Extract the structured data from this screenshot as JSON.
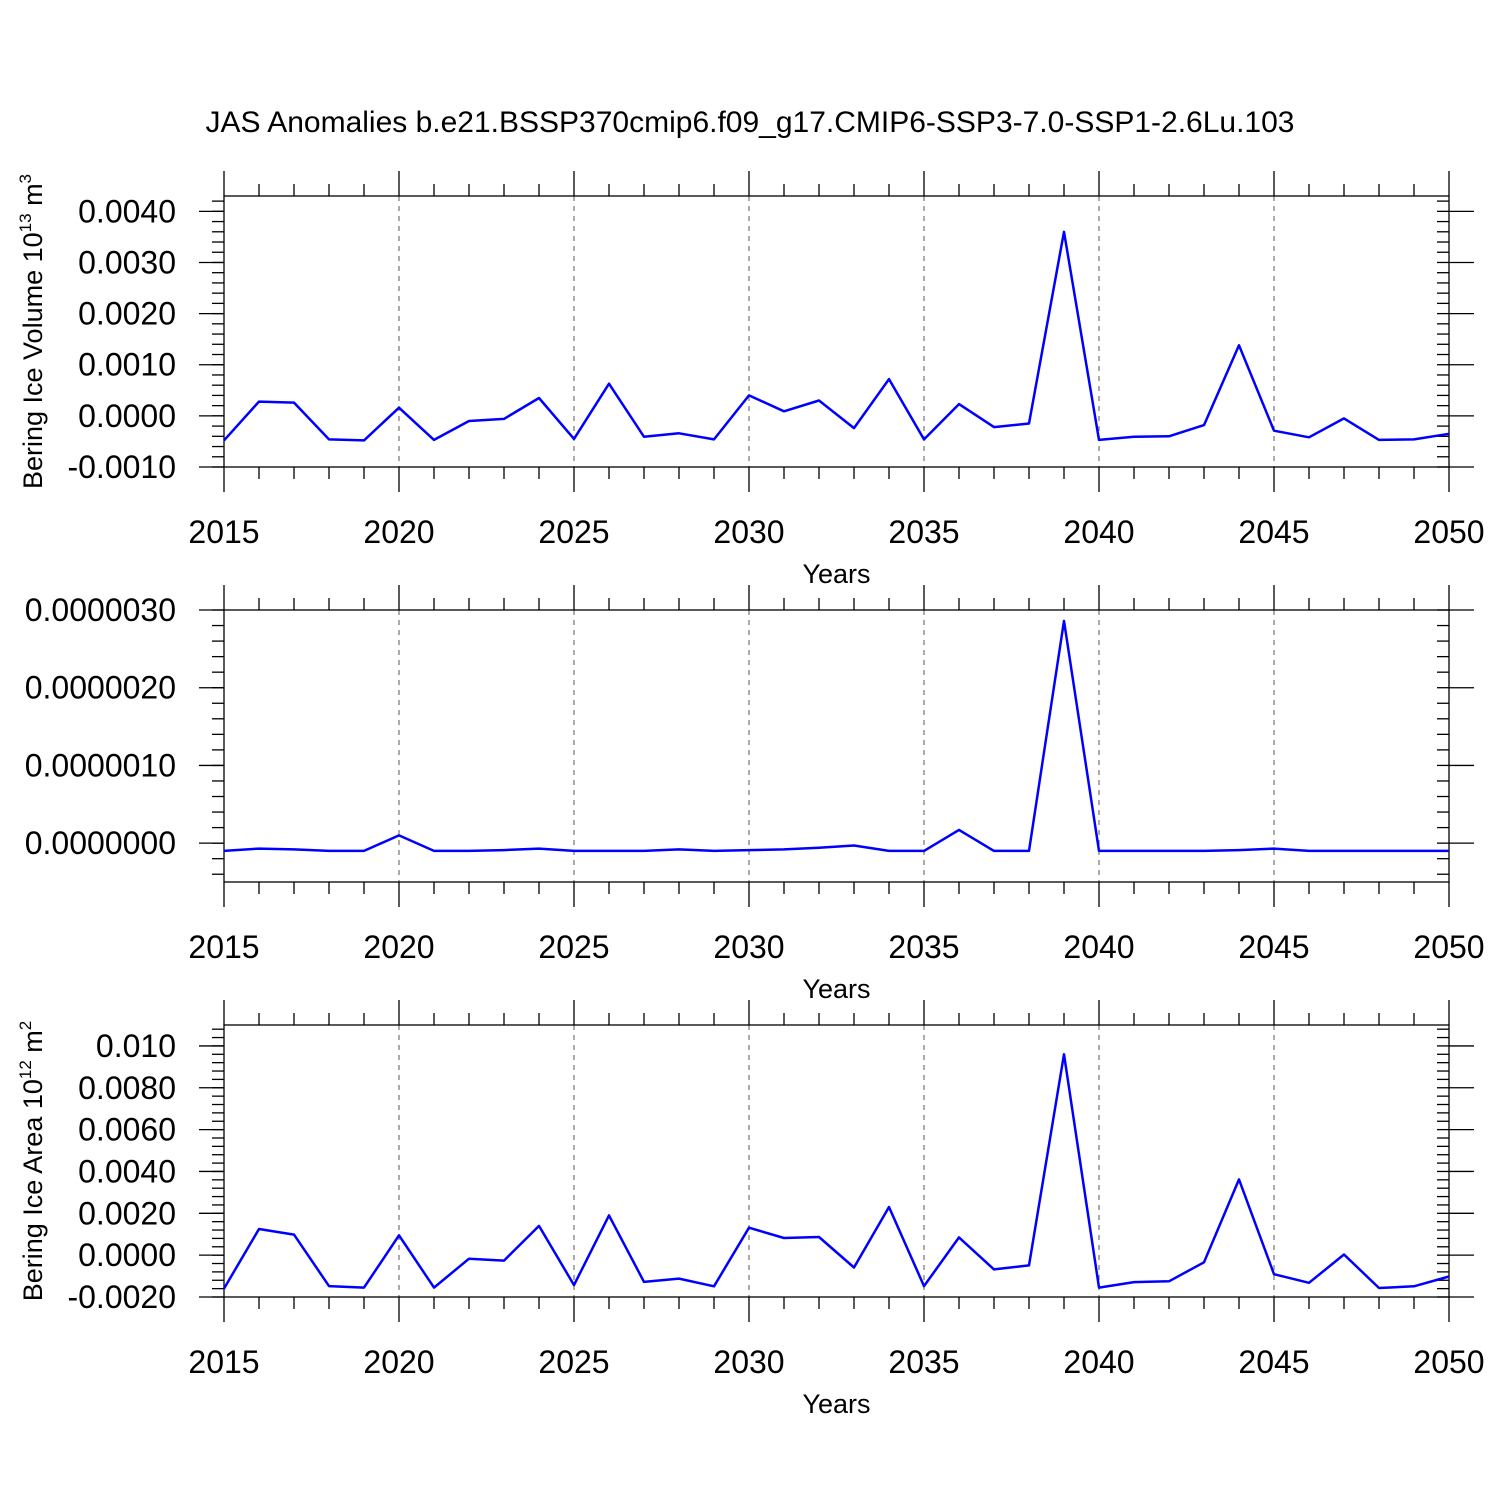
{
  "title": "JAS Anomalies b.e21.BSSP370cmip6.f09_g17.CMIP6-SSP3-7.0-SSP1-2.6Lu.103",
  "colors": {
    "line": "#0000ff",
    "grid": "#808080",
    "axis": "#000000"
  },
  "chart_data": [
    {
      "type": "line",
      "title": "",
      "xlabel": "Years",
      "ylabel": "Bering Ice Volume 10",
      "ylabel_exp": "13",
      "ylabel_unit": " m",
      "ylabel_unit_exp": "3",
      "xlim": [
        2015,
        2050
      ],
      "ylim": [
        -0.001,
        0.0043
      ],
      "xticks": [
        2015,
        2020,
        2025,
        2030,
        2035,
        2040,
        2045,
        2050
      ],
      "xtick_labels": [
        "2015",
        "2020",
        "2025",
        "2030",
        "2035",
        "2040",
        "2045",
        "2050"
      ],
      "yticks": [
        -0.001,
        0.0,
        0.001,
        0.002,
        0.003,
        0.004
      ],
      "ytick_labels": [
        "-0.0010",
        "0.0000",
        "0.0010",
        "0.0020",
        "0.0030",
        "0.0040"
      ],
      "grid": "vertical dashed at major x ticks",
      "x": [
        2015,
        2016,
        2017,
        2018,
        2019,
        2020,
        2021,
        2022,
        2023,
        2024,
        2025,
        2026,
        2027,
        2028,
        2029,
        2030,
        2031,
        2032,
        2033,
        2034,
        2035,
        2036,
        2037,
        2038,
        2039,
        2040,
        2041,
        2042,
        2043,
        2044,
        2045,
        2046,
        2047,
        2048,
        2049,
        2050
      ],
      "series": [
        {
          "values": [
            -0.00048,
            0.00028,
            0.00026,
            -0.00046,
            -0.00048,
            0.00016,
            -0.00047,
            -0.0001,
            -6e-05,
            0.00035,
            -0.00045,
            0.00063,
            -0.00041,
            -0.00034,
            -0.00046,
            0.0004,
            9e-05,
            0.0003,
            -0.00024,
            0.00072,
            -0.00046,
            0.00023,
            -0.00022,
            -0.00015,
            0.0036,
            -0.00047,
            -0.00041,
            -0.0004,
            -0.00018,
            0.00138,
            -0.00029,
            -0.00042,
            -5e-05,
            -0.00047,
            -0.00046,
            -0.00035
          ]
        }
      ]
    },
    {
      "type": "line",
      "title": "",
      "xlabel": "Years",
      "ylabel": "",
      "xlim": [
        2015,
        2050
      ],
      "ylim": [
        -5e-07,
        3e-06
      ],
      "xticks": [
        2015,
        2020,
        2025,
        2030,
        2035,
        2040,
        2045,
        2050
      ],
      "xtick_labels": [
        "2015",
        "2020",
        "2025",
        "2030",
        "2035",
        "2040",
        "2045",
        "2050"
      ],
      "yticks": [
        0.0,
        1e-06,
        2e-06,
        3e-06
      ],
      "ytick_labels": [
        "0.0000000",
        "0.0000010",
        "0.0000020",
        "0.0000030"
      ],
      "grid": "vertical dashed at major x ticks",
      "x": [
        2015,
        2016,
        2017,
        2018,
        2019,
        2020,
        2021,
        2022,
        2023,
        2024,
        2025,
        2026,
        2027,
        2028,
        2029,
        2030,
        2031,
        2032,
        2033,
        2034,
        2035,
        2036,
        2037,
        2038,
        2039,
        2040,
        2041,
        2042,
        2043,
        2044,
        2045,
        2046,
        2047,
        2048,
        2049,
        2050
      ],
      "series": [
        {
          "values": [
            -1e-07,
            -7e-08,
            -8e-08,
            -1e-07,
            -1e-07,
            1e-07,
            -1e-07,
            -1e-07,
            -9e-08,
            -7e-08,
            -1e-07,
            -1e-07,
            -1e-07,
            -8e-08,
            -1e-07,
            -9e-08,
            -8e-08,
            -6e-08,
            -3e-08,
            -1e-07,
            -1e-07,
            1.7e-07,
            -1e-07,
            -1e-07,
            2.86e-06,
            -1e-07,
            -1e-07,
            -1e-07,
            -1e-07,
            -9e-08,
            -7e-08,
            -1e-07,
            -1e-07,
            -1e-07,
            -1e-07,
            -1e-07
          ]
        }
      ]
    },
    {
      "type": "line",
      "title": "",
      "xlabel": "Years",
      "ylabel": "Bering Ice Area 10",
      "ylabel_exp": "12",
      "ylabel_unit": " m",
      "ylabel_unit_exp": "2",
      "xlim": [
        2015,
        2050
      ],
      "ylim": [
        -0.002,
        0.011
      ],
      "xticks": [
        2015,
        2020,
        2025,
        2030,
        2035,
        2040,
        2045,
        2050
      ],
      "xtick_labels": [
        "2015",
        "2020",
        "2025",
        "2030",
        "2035",
        "2040",
        "2045",
        "2050"
      ],
      "yticks": [
        -0.002,
        0.0,
        0.002,
        0.004,
        0.006,
        0.008,
        0.01
      ],
      "ytick_labels": [
        "-0.0020",
        "0.0000",
        "0.0020",
        "0.0040",
        "0.0060",
        "0.0080",
        "0.010"
      ],
      "grid": "vertical dashed at major x ticks",
      "x": [
        2015,
        2016,
        2017,
        2018,
        2019,
        2020,
        2021,
        2022,
        2023,
        2024,
        2025,
        2026,
        2027,
        2028,
        2029,
        2030,
        2031,
        2032,
        2033,
        2034,
        2035,
        2036,
        2037,
        2038,
        2039,
        2040,
        2041,
        2042,
        2043,
        2044,
        2045,
        2046,
        2047,
        2048,
        2049,
        2050
      ],
      "series": [
        {
          "values": [
            -0.0016,
            0.00125,
            0.00098,
            -0.00148,
            -0.00155,
            0.00095,
            -0.00155,
            -0.00017,
            -0.00026,
            0.0014,
            -0.00143,
            0.0019,
            -0.00128,
            -0.00112,
            -0.00149,
            0.00131,
            0.00082,
            0.00087,
            -0.00059,
            0.0023,
            -0.00148,
            0.00085,
            -0.00068,
            -0.00049,
            0.0096,
            -0.00155,
            -0.00129,
            -0.00125,
            -0.00034,
            0.00362,
            -0.00091,
            -0.00132,
            3e-05,
            -0.00157,
            -0.00149,
            -0.00102
          ]
        }
      ]
    }
  ]
}
